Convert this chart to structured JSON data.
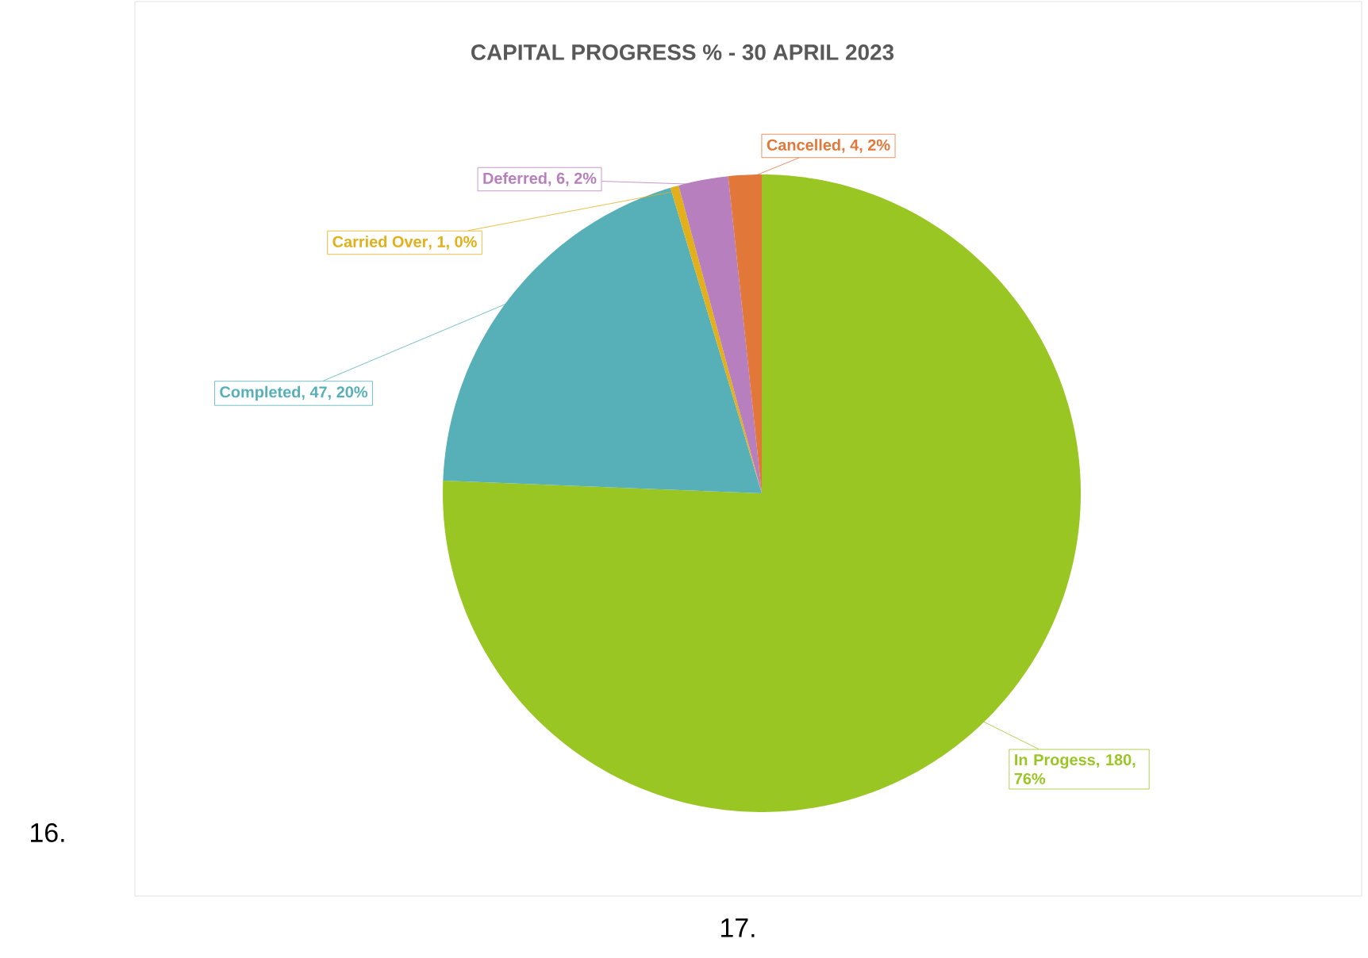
{
  "chart_data": {
    "type": "pie",
    "title": "CAPITAL PROGRESS % - 30 APRIL 2023",
    "categories": [
      "In Progess",
      "Completed",
      "Carried Over",
      "Deferred",
      "Cancelled"
    ],
    "values": [
      180,
      47,
      1,
      6,
      4
    ],
    "colors": [
      "#9ac624",
      "#57b0b8",
      "#e2b01a",
      "#b77fbd",
      "#e2773a"
    ],
    "value_labels": [
      ", 180, 76%",
      ", 47, 20%",
      ", 1, 0%",
      ", 6, 2%",
      ", 4, 2%"
    ],
    "annotations": [
      "16.",
      "17."
    ]
  }
}
